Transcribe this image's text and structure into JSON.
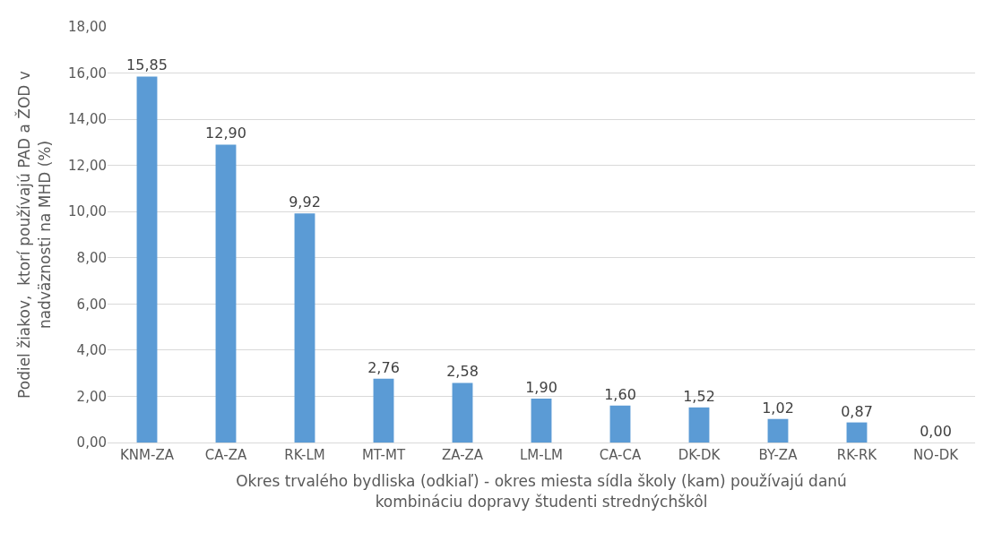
{
  "chart_data": {
    "type": "bar",
    "xlabel": "Okres trvalého bydliska (odkiaľ) - okres miesta sídla školy (kam) používajú danú\nkombináciu dopravy študenti strednýchškôl",
    "ylabel": "Podiel žiakov,  ktorí používajú PAD a ŽOD v\nnadväznosti na MHD (%)",
    "categories": [
      "KNM-ZA",
      "CA-ZA",
      "RK-LM",
      "MT-MT",
      "ZA-ZA",
      "LM-LM",
      "CA-CA",
      "DK-DK",
      "BY-ZA",
      "RK-RK",
      "NO-DK"
    ],
    "values": [
      15.85,
      12.9,
      9.92,
      2.76,
      2.58,
      1.9,
      1.6,
      1.52,
      1.02,
      0.87,
      0.0
    ],
    "value_labels": [
      "15,85",
      "12,90",
      "9,92",
      "2,76",
      "2,58",
      "1,90",
      "1,60",
      "1,52",
      "1,02",
      "0,87",
      "0,00"
    ],
    "color": "#5b9bd5",
    "ylim": [
      0,
      18
    ],
    "yticks": [
      {
        "value": 0,
        "label": "0,00"
      },
      {
        "value": 2,
        "label": "2,00"
      },
      {
        "value": 4,
        "label": "4,00"
      },
      {
        "value": 6,
        "label": "6,00"
      },
      {
        "value": 8,
        "label": "8,00"
      },
      {
        "value": 10,
        "label": "10,00"
      },
      {
        "value": 12,
        "label": "12,00"
      },
      {
        "value": 14,
        "label": "14,00"
      },
      {
        "value": 16,
        "label": "16,00"
      },
      {
        "value": 18,
        "label": "18,00"
      }
    ],
    "grid": "y"
  }
}
